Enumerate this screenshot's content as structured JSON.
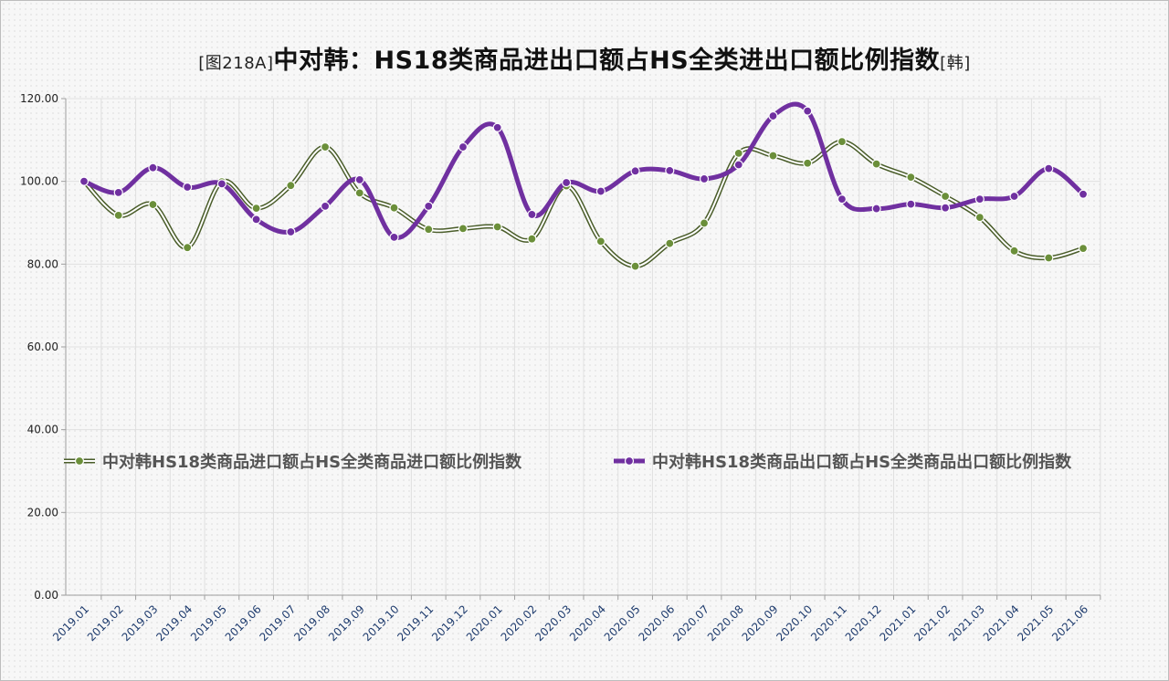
{
  "title": {
    "prefix": "[图218A]",
    "main": "中对韩：HS18类商品进出口额占HS全类进出口额比例指数",
    "suffix": "[韩]"
  },
  "colors": {
    "import": "#6b8f3a",
    "import_dark": "#4a5d2a",
    "export": "#7030a0",
    "grid": "#e0e0e0",
    "axis": "#9e9e9e"
  },
  "chart_data": {
    "type": "line",
    "categories": [
      "2019.01",
      "2019.02",
      "2019.03",
      "2019.04",
      "2019.05",
      "2019.06",
      "2019.07",
      "2019.08",
      "2019.09",
      "2019.10",
      "2019.11",
      "2019.12",
      "2020.01",
      "2020.02",
      "2020.03",
      "2020.04",
      "2020.05",
      "2020.06",
      "2020.07",
      "2020.08",
      "2020.09",
      "2020.10",
      "2020.11",
      "2020.12",
      "2021.01",
      "2021.02",
      "2021.03",
      "2021.04",
      "2021.05",
      "2021.06"
    ],
    "yticks": [
      "0.00",
      "20.00",
      "40.00",
      "60.00",
      "80.00",
      "100.00",
      "120.00"
    ],
    "ylim": [
      0,
      120
    ],
    "grid": true,
    "legend_position": "middle",
    "series": [
      {
        "name": "中对韩HS18类商品进口额占HS全类商品进口额比例指数",
        "style": "double-line",
        "values": [
          100,
          91.8,
          94.4,
          84,
          99.9,
          93.5,
          99,
          108.3,
          97.2,
          93.6,
          88.4,
          88.6,
          89,
          86.1,
          98.9,
          85.5,
          79.5,
          85,
          89.9,
          106.8,
          106.2,
          104.4,
          109.6,
          104.2,
          101,
          96.4,
          91.3,
          83.2,
          81.5,
          83.8
        ]
      },
      {
        "name": "中对韩HS18类商品出口额占HS全类商品出口额比例指数",
        "style": "thick",
        "values": [
          100,
          97.3,
          103.3,
          98.6,
          99.4,
          90.8,
          87.8,
          94,
          100.4,
          86.5,
          94,
          108.3,
          113,
          92,
          99.7,
          97.6,
          102.5,
          102.6,
          100.6,
          104,
          115.8,
          117,
          95.7,
          93.4,
          94.5,
          93.6,
          95.7,
          96.4,
          103.1,
          96.9
        ]
      }
    ]
  }
}
